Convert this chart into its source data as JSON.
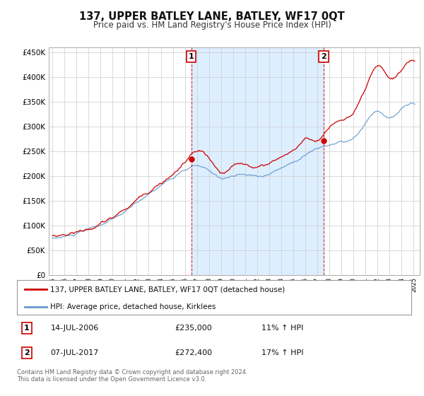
{
  "title": "137, UPPER BATLEY LANE, BATLEY, WF17 0QT",
  "subtitle": "Price paid vs. HM Land Registry's House Price Index (HPI)",
  "ylim": [
    0,
    460000
  ],
  "yticks": [
    0,
    50000,
    100000,
    150000,
    200000,
    250000,
    300000,
    350000,
    400000,
    450000
  ],
  "line1_label": "137, UPPER BATLEY LANE, BATLEY, WF17 0QT (detached house)",
  "line1_color": "#cc0000",
  "line2_label": "HPI: Average price, detached house, Kirklees",
  "line2_color": "#6699cc",
  "sale1_x": 2006.54,
  "sale1_y": 235000,
  "sale2_x": 2017.52,
  "sale2_y": 272400,
  "shade_color": "#ddeeff",
  "annotation1": {
    "num": "1",
    "date": "14-JUL-2006",
    "price": "£235,000",
    "hpi": "11% ↑ HPI"
  },
  "annotation2": {
    "num": "2",
    "date": "07-JUL-2017",
    "price": "£272,400",
    "hpi": "17% ↑ HPI"
  },
  "footer": "Contains HM Land Registry data © Crown copyright and database right 2024.\nThis data is licensed under the Open Government Licence v3.0.",
  "bg_color": "#ffffff",
  "grid_color": "#cccccc",
  "xlim_left": 1994.7,
  "xlim_right": 2025.5
}
